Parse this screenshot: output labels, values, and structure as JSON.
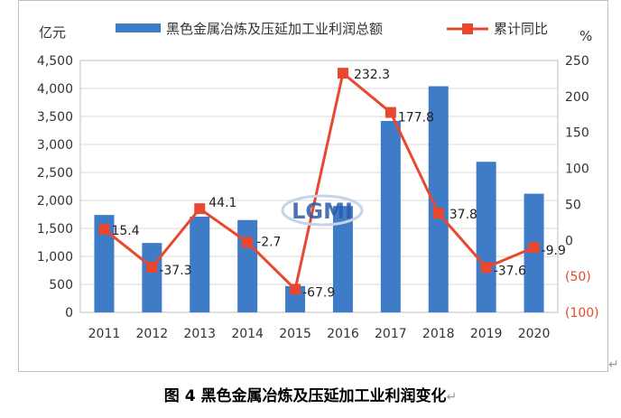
{
  "chart_data": {
    "type": "bar",
    "categories": [
      "2011",
      "2012",
      "2013",
      "2014",
      "2015",
      "2016",
      "2017",
      "2018",
      "2019",
      "2020"
    ],
    "series": [
      {
        "name": "黑色金属冶炼及压延加工业利润总额",
        "kind": "bar",
        "axis": "left",
        "values": [
          1740,
          1240,
          1710,
          1650,
          470,
          1900,
          3420,
          4040,
          2690,
          2120
        ]
      },
      {
        "name": "累计同比",
        "kind": "line",
        "axis": "right",
        "values": [
          15.4,
          -37.3,
          44.1,
          -2.7,
          -67.9,
          232.3,
          177.8,
          37.8,
          -37.6,
          -9.9
        ],
        "labels": [
          "15.4",
          "-37.3",
          "44.1",
          "-2.7",
          "-67.9",
          "232.3",
          "177.8",
          "37.8",
          "-37.6",
          "-9.9"
        ]
      }
    ],
    "left_axis": {
      "unit": "亿元",
      "min": 0,
      "max": 4500,
      "step": 500,
      "tick_labels": [
        "0",
        "500",
        "1,000",
        "1,500",
        "2,000",
        "2,500",
        "3,000",
        "3,500",
        "4,000",
        "4,500"
      ]
    },
    "right_axis": {
      "unit": "%",
      "min": -100,
      "max": 250,
      "step": 50,
      "tick_labels": [
        "(100)",
        "(50)",
        "0",
        "50",
        "100",
        "150",
        "200",
        "250"
      ]
    },
    "grid": true,
    "legend": "top",
    "colors": {
      "bar": "#3f7cc8",
      "line": "#e8482e"
    },
    "watermark": "LGMI"
  },
  "caption": {
    "text": "图 4  黑色金属冶炼及压延加工业利润变化",
    "mark": "↵"
  },
  "frame_mark": "↵"
}
